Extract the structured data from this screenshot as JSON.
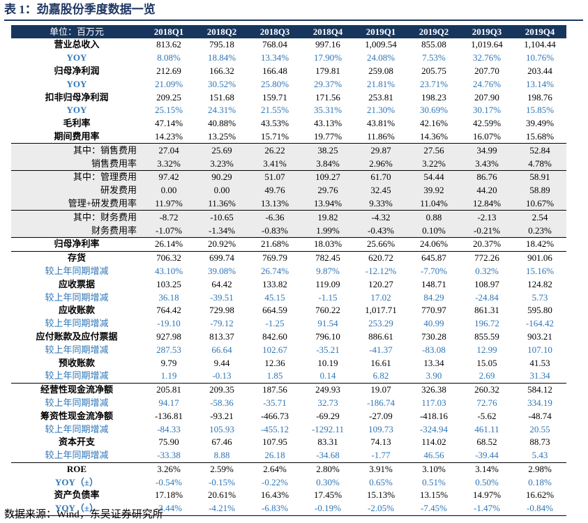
{
  "title": "表 1：劲嘉股份季度数据一览",
  "header": {
    "unit_label": "单位：百万元",
    "quarters": [
      "2018Q1",
      "2018Q2",
      "2018Q3",
      "2018Q4",
      "2019Q1",
      "2019Q2",
      "2019Q3",
      "2019Q4"
    ]
  },
  "rows": [
    {
      "label": "营业总收入",
      "style": "bold",
      "values": [
        "813.62",
        "795.18",
        "768.04",
        "997.16",
        "1,009.54",
        "855.08",
        "1,019.64",
        "1,104.44"
      ]
    },
    {
      "label": "YOY",
      "style": "blue-bold",
      "values": [
        "8.08%",
        "18.84%",
        "13.34%",
        "17.90%",
        "24.08%",
        "7.53%",
        "32.76%",
        "10.76%"
      ]
    },
    {
      "label": "归母净利润",
      "style": "bold",
      "values": [
        "212.69",
        "166.32",
        "166.48",
        "179.81",
        "259.08",
        "205.75",
        "207.70",
        "203.44"
      ]
    },
    {
      "label": "YOY",
      "style": "blue-bold",
      "values": [
        "21.09%",
        "30.52%",
        "25.80%",
        "29.37%",
        "21.81%",
        "23.71%",
        "24.76%",
        "13.14%"
      ]
    },
    {
      "label": "扣非归母净利润",
      "style": "bold",
      "values": [
        "209.25",
        "151.68",
        "159.71",
        "171.56",
        "253.81",
        "198.23",
        "207.90",
        "198.76"
      ]
    },
    {
      "label": "YOY",
      "style": "blue-bold",
      "values": [
        "25.15%",
        "24.31%",
        "21.55%",
        "35.31%",
        "21.30%",
        "30.69%",
        "30.17%",
        "15.85%"
      ]
    },
    {
      "label": "毛利率",
      "style": "bold",
      "values": [
        "47.14%",
        "40.88%",
        "43.53%",
        "43.13%",
        "43.81%",
        "42.16%",
        "42.59%",
        "39.49%"
      ]
    },
    {
      "label": "期间费用率",
      "style": "bold",
      "values": [
        "14.23%",
        "13.25%",
        "15.71%",
        "19.77%",
        "11.86%",
        "14.36%",
        "16.07%",
        "15.68%"
      ]
    },
    {
      "label": "其中：销售费用",
      "style": "indent",
      "shade": true,
      "sep": true,
      "values": [
        "27.04",
        "25.69",
        "26.22",
        "38.25",
        "29.87",
        "27.56",
        "34.99",
        "52.84"
      ]
    },
    {
      "label": "销售费用率",
      "style": "indent",
      "shade": true,
      "values": [
        "3.32%",
        "3.23%",
        "3.41%",
        "3.84%",
        "2.96%",
        "3.22%",
        "3.43%",
        "4.78%"
      ]
    },
    {
      "label": "其中：管理费用",
      "style": "indent",
      "shade": true,
      "sep": true,
      "values": [
        "97.42",
        "90.29",
        "51.07",
        "109.27",
        "61.70",
        "54.44",
        "86.76",
        "58.91"
      ]
    },
    {
      "label": "研发费用",
      "style": "indent",
      "shade": true,
      "values": [
        "0.00",
        "0.00",
        "49.76",
        "29.76",
        "32.45",
        "39.92",
        "44.20",
        "58.89"
      ]
    },
    {
      "label": "管理+研发费用率",
      "style": "indent",
      "shade": true,
      "values": [
        "11.97%",
        "11.36%",
        "13.13%",
        "13.94%",
        "9.33%",
        "11.04%",
        "12.84%",
        "10.67%"
      ]
    },
    {
      "label": "其中：财务费用",
      "style": "indent",
      "shade": true,
      "sep": true,
      "values": [
        "-8.72",
        "-10.65",
        "-6.36",
        "19.82",
        "-4.32",
        "0.88",
        "-2.13",
        "2.54"
      ]
    },
    {
      "label": "财务费用率",
      "style": "indent",
      "shade": true,
      "values": [
        "-1.07%",
        "-1.34%",
        "-0.83%",
        "1.99%",
        "-0.43%",
        "0.10%",
        "-0.21%",
        "0.23%"
      ]
    },
    {
      "label": "归母净利率",
      "style": "bold",
      "sep": true,
      "values": [
        "26.14%",
        "20.92%",
        "21.68%",
        "18.03%",
        "25.66%",
        "24.06%",
        "20.37%",
        "18.42%"
      ]
    },
    {
      "label": "存货",
      "style": "bold",
      "sep": true,
      "values": [
        "706.32",
        "699.74",
        "769.79",
        "782.45",
        "620.72",
        "645.87",
        "772.26",
        "901.06"
      ]
    },
    {
      "label": "较上年同期增减",
      "style": "blue",
      "values": [
        "43.10%",
        "39.08%",
        "26.74%",
        "9.87%",
        "-12.12%",
        "-7.70%",
        "0.32%",
        "15.16%"
      ]
    },
    {
      "label": "应收票据",
      "style": "bold",
      "values": [
        "103.25",
        "64.42",
        "133.82",
        "119.09",
        "120.27",
        "148.71",
        "108.97",
        "124.82"
      ]
    },
    {
      "label": "较上年同期增减",
      "style": "blue",
      "values": [
        "36.18",
        "-39.51",
        "45.15",
        "-1.15",
        "17.02",
        "84.29",
        "-24.84",
        "5.73"
      ]
    },
    {
      "label": "应收账款",
      "style": "bold",
      "values": [
        "764.42",
        "729.98",
        "664.59",
        "760.22",
        "1,017.71",
        "770.97",
        "861.31",
        "595.80"
      ]
    },
    {
      "label": "较上年同期增减",
      "style": "blue",
      "values": [
        "-19.10",
        "-79.12",
        "-1.25",
        "91.54",
        "253.29",
        "40.99",
        "196.72",
        "-164.42"
      ]
    },
    {
      "label": "应付账款及应付票据",
      "style": "bold",
      "values": [
        "927.98",
        "813.37",
        "842.60",
        "796.10",
        "886.61",
        "730.28",
        "855.59",
        "903.21"
      ]
    },
    {
      "label": "较上年同期增减",
      "style": "blue",
      "values": [
        "287.53",
        "66.64",
        "102.67",
        "-35.21",
        "-41.37",
        "-83.08",
        "12.99",
        "107.10"
      ]
    },
    {
      "label": "预收账款",
      "style": "bold",
      "values": [
        "9.79",
        "9.44",
        "12.36",
        "10.19",
        "16.61",
        "13.34",
        "15.05",
        "41.53"
      ]
    },
    {
      "label": "较上年同期增减",
      "style": "blue",
      "values": [
        "1.19",
        "-0.13",
        "1.85",
        "0.14",
        "6.82",
        "3.90",
        "2.69",
        "31.34"
      ]
    },
    {
      "label": "经营性现金流净额",
      "style": "bold",
      "sep": true,
      "values": [
        "205.81",
        "209.35",
        "187.56",
        "249.93",
        "19.07",
        "326.38",
        "260.32",
        "584.12"
      ]
    },
    {
      "label": "较上年同期增减",
      "style": "blue",
      "values": [
        "94.17",
        "-58.36",
        "-35.71",
        "32.73",
        "-186.74",
        "117.03",
        "72.76",
        "334.19"
      ]
    },
    {
      "label": "筹资性现金流净额",
      "style": "bold",
      "values": [
        "-136.81",
        "-93.21",
        "-466.73",
        "-69.29",
        "-27.09",
        "-418.16",
        "-5.62",
        "-48.74"
      ]
    },
    {
      "label": "较上年同期增减",
      "style": "blue",
      "values": [
        "-84.33",
        "105.93",
        "-455.12",
        "-1292.11",
        "109.73",
        "-324.94",
        "461.11",
        "20.55"
      ]
    },
    {
      "label": "资本开支",
      "style": "bold",
      "values": [
        "75.90",
        "67.46",
        "107.95",
        "83.31",
        "74.13",
        "114.02",
        "68.52",
        "88.73"
      ]
    },
    {
      "label": "较上年同期增减",
      "style": "blue",
      "values": [
        "-33.38",
        "8.88",
        "26.18",
        "-34.68",
        "-1.77",
        "46.56",
        "-39.44",
        "5.43"
      ]
    },
    {
      "label": "ROE",
      "style": "bold",
      "sep": true,
      "values": [
        "3.26%",
        "2.59%",
        "2.64%",
        "2.80%",
        "3.91%",
        "3.10%",
        "3.14%",
        "2.98%"
      ]
    },
    {
      "label": "YOY（±）",
      "style": "blue-bold",
      "values": [
        "-0.54%",
        "-0.15%",
        "-0.22%",
        "0.30%",
        "0.65%",
        "0.51%",
        "0.50%",
        "0.18%"
      ]
    },
    {
      "label": "资产负债率",
      "style": "bold",
      "values": [
        "17.18%",
        "20.61%",
        "16.43%",
        "17.45%",
        "15.13%",
        "13.15%",
        "14.97%",
        "16.62%"
      ]
    },
    {
      "label": "YOY（±）",
      "style": "blue-bold",
      "last": true,
      "values": [
        "-3.44%",
        "-4.21%",
        "-6.83%",
        "-0.19%",
        "-2.05%",
        "-7.45%",
        "-1.47%",
        "-0.84%"
      ]
    }
  ],
  "source": "数据来源：Wind，东吴证券研究所",
  "colors": {
    "header_bg": "#17365d",
    "blue": "#2e75b6",
    "shade": "#ececec"
  }
}
